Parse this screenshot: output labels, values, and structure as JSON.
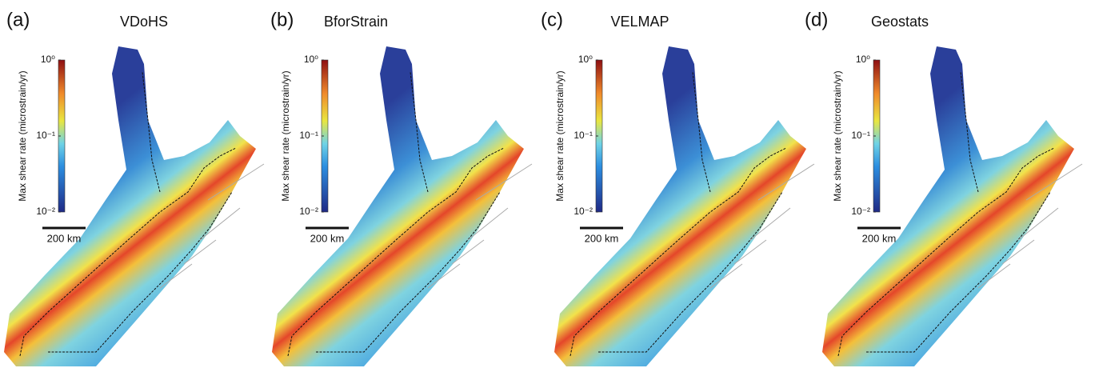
{
  "panels": [
    {
      "label": "(a)",
      "title": "VDoHS",
      "colorbar": {
        "label": "Max shear rate (microstrain/yr)",
        "scale": "log",
        "lim": [
          0.01,
          1
        ],
        "ticks": [
          {
            "value": 1,
            "label": "10⁰"
          },
          {
            "value": 0.1,
            "label": "10⁻¹"
          },
          {
            "value": 0.01,
            "label": "10⁻²"
          }
        ]
      },
      "scale_bar": "200 km"
    },
    {
      "label": "(b)",
      "title": "BforStrain",
      "colorbar": {
        "label": "Max shear rate (microstrain/yr)",
        "scale": "log",
        "lim": [
          0.01,
          1
        ],
        "ticks": [
          {
            "value": 1,
            "label": "10⁰"
          },
          {
            "value": 0.1,
            "label": "10⁻¹"
          },
          {
            "value": 0.01,
            "label": "10⁻²"
          }
        ]
      },
      "scale_bar": "200 km"
    },
    {
      "label": "(c)",
      "title": "VELMAP",
      "colorbar": {
        "label": "Max shear rate (microstrain/yr)",
        "scale": "log",
        "lim": [
          0.01,
          1
        ],
        "ticks": [
          {
            "value": 1,
            "label": "10⁰"
          },
          {
            "value": 0.1,
            "label": "10⁻¹"
          },
          {
            "value": 0.01,
            "label": "10⁻²"
          }
        ]
      },
      "scale_bar": "200 km"
    },
    {
      "label": "(d)",
      "title": "Geostats",
      "colorbar": {
        "label": "Max shear rate (microstrain/yr)",
        "scale": "log",
        "lim": [
          0.01,
          1
        ],
        "ticks": [
          {
            "value": 1,
            "label": "10⁰"
          },
          {
            "value": 0.1,
            "label": "10⁻¹"
          },
          {
            "value": 0.01,
            "label": "10⁻²"
          }
        ]
      },
      "scale_bar": "200 km"
    }
  ]
}
